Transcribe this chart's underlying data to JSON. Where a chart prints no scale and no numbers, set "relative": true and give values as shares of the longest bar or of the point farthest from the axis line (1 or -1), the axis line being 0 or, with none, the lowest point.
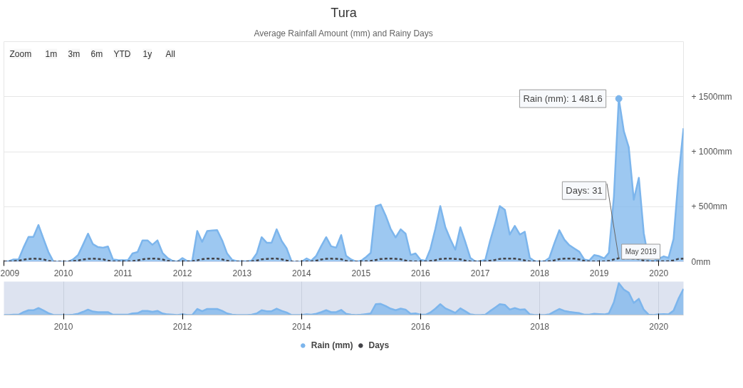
{
  "chart_data": [
    {
      "type": "area",
      "title": "Tura",
      "subtitle": "Average Rainfall Amount (mm) and Rainy Days",
      "x": [
        "2009-01",
        "2009-02",
        "2009-03",
        "2009-04",
        "2009-05",
        "2009-06",
        "2009-07",
        "2009-08",
        "2009-09",
        "2009-10",
        "2009-11",
        "2009-12",
        "2010-01",
        "2010-02",
        "2010-03",
        "2010-04",
        "2010-05",
        "2010-06",
        "2010-07",
        "2010-08",
        "2010-09",
        "2010-10",
        "2010-11",
        "2010-12",
        "2011-01",
        "2011-02",
        "2011-03",
        "2011-04",
        "2011-05",
        "2011-06",
        "2011-07",
        "2011-08",
        "2011-09",
        "2011-10",
        "2011-11",
        "2011-12",
        "2012-01",
        "2012-02",
        "2012-03",
        "2012-04",
        "2012-05",
        "2012-06",
        "2012-07",
        "2012-08",
        "2012-09",
        "2012-10",
        "2012-11",
        "2012-12",
        "2013-01",
        "2013-02",
        "2013-03",
        "2013-04",
        "2013-05",
        "2013-06",
        "2013-07",
        "2013-08",
        "2013-09",
        "2013-10",
        "2013-11",
        "2013-12",
        "2014-01",
        "2014-02",
        "2014-03",
        "2014-04",
        "2014-05",
        "2014-06",
        "2014-07",
        "2014-08",
        "2014-09",
        "2014-10",
        "2014-11",
        "2014-12",
        "2015-01",
        "2015-02",
        "2015-03",
        "2015-04",
        "2015-05",
        "2015-06",
        "2015-07",
        "2015-08",
        "2015-09",
        "2015-10",
        "2015-11",
        "2015-12",
        "2016-01",
        "2016-02",
        "2016-03",
        "2016-04",
        "2016-05",
        "2016-06",
        "2016-07",
        "2016-08",
        "2016-09",
        "2016-10",
        "2016-11",
        "2016-12",
        "2017-01",
        "2017-02",
        "2017-03",
        "2017-04",
        "2017-05",
        "2017-06",
        "2017-07",
        "2017-08",
        "2017-09",
        "2017-10",
        "2017-11",
        "2017-12",
        "2018-01",
        "2018-02",
        "2018-03",
        "2018-04",
        "2018-05",
        "2018-06",
        "2018-07",
        "2018-08",
        "2018-09",
        "2018-10",
        "2018-11",
        "2018-12",
        "2019-01",
        "2019-02",
        "2019-03",
        "2019-04",
        "2019-05",
        "2019-06",
        "2019-07",
        "2019-08",
        "2019-09",
        "2019-10",
        "2019-11",
        "2019-12",
        "2020-01",
        "2020-02",
        "2020-03",
        "2020-04",
        "2020-05",
        "2020-06"
      ],
      "series": [
        {
          "name": "Rain (mm)",
          "type": "area",
          "color": "#7cb5ec",
          "values": [
            0,
            5,
            20,
            20,
            127,
            225,
            225,
            333,
            206,
            87,
            0,
            0,
            0,
            0,
            20,
            60,
            153,
            254,
            159,
            132,
            127,
            138,
            20,
            15,
            13,
            13,
            74,
            87,
            193,
            193,
            153,
            193,
            79,
            34,
            8,
            0,
            32,
            5,
            5,
            278,
            180,
            278,
            283,
            286,
            193,
            74,
            16,
            3,
            3,
            3,
            10,
            74,
            222,
            172,
            172,
            294,
            188,
            122,
            0,
            0,
            0,
            29,
            8,
            53,
            140,
            222,
            140,
            127,
            241,
            53,
            20,
            0,
            8,
            42,
            79,
            503,
            519,
            418,
            299,
            220,
            294,
            254,
            61,
            74,
            16,
            8,
            114,
            299,
            505,
            312,
            206,
            108,
            312,
            180,
            34,
            3,
            5,
            16,
            180,
            339,
            505,
            471,
            246,
            325,
            246,
            272,
            34,
            5,
            0,
            5,
            34,
            167,
            286,
            200,
            150,
            120,
            90,
            20,
            10,
            60,
            50,
            30,
            80,
            590,
            1481.6,
            1185,
            1040,
            563,
            762,
            259,
            10,
            5,
            26,
            48,
            34,
            206,
            762,
            1212
          ]
        },
        {
          "name": "Days",
          "type": "line",
          "line_style": "dashed",
          "color": "#434348",
          "values": [
            1,
            1,
            3,
            8,
            18,
            25,
            27,
            26,
            20,
            7,
            1,
            0,
            0,
            1,
            4,
            10,
            20,
            26,
            27,
            25,
            21,
            9,
            2,
            1,
            1,
            2,
            5,
            11,
            21,
            26,
            28,
            26,
            19,
            8,
            1,
            0,
            2,
            1,
            3,
            12,
            22,
            27,
            28,
            27,
            20,
            8,
            1,
            0,
            0,
            1,
            3,
            10,
            21,
            25,
            27,
            27,
            21,
            10,
            1,
            0,
            0,
            2,
            2,
            9,
            19,
            26,
            27,
            26,
            22,
            7,
            2,
            0,
            1,
            3,
            6,
            15,
            24,
            27,
            28,
            26,
            22,
            10,
            3,
            2,
            1,
            1,
            6,
            13,
            24,
            27,
            28,
            25,
            21,
            9,
            2,
            1,
            1,
            2,
            8,
            15,
            25,
            28,
            27,
            27,
            21,
            11,
            2,
            1,
            0,
            1,
            4,
            12,
            23,
            27,
            28,
            27,
            20,
            7,
            1,
            2,
            2,
            2,
            6,
            20,
            31,
            28,
            29,
            26,
            22,
            10,
            1,
            1,
            2,
            3,
            4,
            12,
            25,
            28
          ]
        }
      ],
      "xlim": [
        "2009-01",
        "2020-06"
      ],
      "xticks": [
        "2009",
        "2010",
        "2011",
        "2012",
        "2013",
        "2014",
        "2015",
        "2016",
        "2017",
        "2018",
        "2019",
        "2020"
      ],
      "ylim": [
        0,
        2000
      ],
      "yticks": [
        {
          "value": 0,
          "label": "0mm"
        },
        {
          "value": 500,
          "label": "+ 500mm"
        },
        {
          "value": 1000,
          "label": "+ 1000mm"
        },
        {
          "value": 1500,
          "label": "+ 1500mm"
        },
        {
          "value": 2000,
          "label": null
        }
      ],
      "grid": "y",
      "legend": "bottom",
      "annotations": [
        "Zoom",
        "1m",
        "3m",
        "6m",
        "YTD",
        "1y",
        "All",
        {
          "text": "Rain (mm): 1 481.6",
          "x": "2019-05",
          "y": 1481.6
        },
        {
          "text": "Days: 31",
          "x": "2019-05",
          "y": 31
        },
        {
          "text": "May 2019",
          "x": "2019-05",
          "y": 0
        }
      ]
    },
    {
      "type": "area",
      "relative": true,
      "color": "#7cb5ec",
      "x": [
        "2009-01",
        "2009-02",
        "2009-03",
        "2009-04",
        "2009-05",
        "2009-06",
        "2009-07",
        "2009-08",
        "2009-09",
        "2009-10",
        "2009-11",
        "2009-12",
        "2010-01",
        "2010-02",
        "2010-03",
        "2010-04",
        "2010-05",
        "2010-06",
        "2010-07",
        "2010-08",
        "2010-09",
        "2010-10",
        "2010-11",
        "2010-12",
        "2011-01",
        "2011-02",
        "2011-03",
        "2011-04",
        "2011-05",
        "2011-06",
        "2011-07",
        "2011-08",
        "2011-09",
        "2011-10",
        "2011-11",
        "2011-12",
        "2012-01",
        "2012-02",
        "2012-03",
        "2012-04",
        "2012-05",
        "2012-06",
        "2012-07",
        "2012-08",
        "2012-09",
        "2012-10",
        "2012-11",
        "2012-12",
        "2013-01",
        "2013-02",
        "2013-03",
        "2013-04",
        "2013-05",
        "2013-06",
        "2013-07",
        "2013-08",
        "2013-09",
        "2013-10",
        "2013-11",
        "2013-12",
        "2014-01",
        "2014-02",
        "2014-03",
        "2014-04",
        "2014-05",
        "2014-06",
        "2014-07",
        "2014-08",
        "2014-09",
        "2014-10",
        "2014-11",
        "2014-12",
        "2015-01",
        "2015-02",
        "2015-03",
        "2015-04",
        "2015-05",
        "2015-06",
        "2015-07",
        "2015-08",
        "2015-09",
        "2015-10",
        "2015-11",
        "2015-12",
        "2016-01",
        "2016-02",
        "2016-03",
        "2016-04",
        "2016-05",
        "2016-06",
        "2016-07",
        "2016-08",
        "2016-09",
        "2016-10",
        "2016-11",
        "2016-12",
        "2017-01",
        "2017-02",
        "2017-03",
        "2017-04",
        "2017-05",
        "2017-06",
        "2017-07",
        "2017-08",
        "2017-09",
        "2017-10",
        "2017-11",
        "2017-12",
        "2018-01",
        "2018-02",
        "2018-03",
        "2018-04",
        "2018-05",
        "2018-06",
        "2018-07",
        "2018-08",
        "2018-09",
        "2018-10",
        "2018-11",
        "2018-12",
        "2019-01",
        "2019-02",
        "2019-03",
        "2019-04",
        "2019-05",
        "2019-06",
        "2019-07",
        "2019-08",
        "2019-09",
        "2019-10",
        "2019-11",
        "2019-12",
        "2020-01",
        "2020-02",
        "2020-03",
        "2020-04",
        "2020-05",
        "2020-06"
      ],
      "values": [
        0,
        0,
        0.01,
        0.01,
        0.09,
        0.15,
        0.15,
        0.22,
        0.14,
        0.06,
        0,
        0,
        0,
        0,
        0.01,
        0.04,
        0.1,
        0.17,
        0.11,
        0.09,
        0.09,
        0.09,
        0.01,
        0.01,
        0.01,
        0.01,
        0.05,
        0.06,
        0.13,
        0.13,
        0.1,
        0.13,
        0.05,
        0.02,
        0.01,
        0,
        0.02,
        0,
        0,
        0.19,
        0.12,
        0.19,
        0.19,
        0.19,
        0.13,
        0.05,
        0.01,
        0,
        0,
        0,
        0.01,
        0.05,
        0.15,
        0.12,
        0.12,
        0.2,
        0.13,
        0.08,
        0,
        0,
        0,
        0.02,
        0.01,
        0.04,
        0.09,
        0.15,
        0.09,
        0.09,
        0.16,
        0.04,
        0.01,
        0,
        0.01,
        0.03,
        0.05,
        0.34,
        0.35,
        0.28,
        0.2,
        0.15,
        0.2,
        0.17,
        0.04,
        0.05,
        0.01,
        0.01,
        0.08,
        0.2,
        0.34,
        0.21,
        0.14,
        0.07,
        0.21,
        0.12,
        0.02,
        0,
        0,
        0.01,
        0.12,
        0.23,
        0.34,
        0.32,
        0.17,
        0.22,
        0.17,
        0.18,
        0.02,
        0,
        0,
        0,
        0.02,
        0.11,
        0.19,
        0.13,
        0.1,
        0.08,
        0.06,
        0.01,
        0.01,
        0.04,
        0.03,
        0.02,
        0.05,
        0.4,
        1,
        0.8,
        0.7,
        0.38,
        0.51,
        0.17,
        0.01,
        0,
        0.02,
        0.03,
        0.02,
        0.14,
        0.51,
        0.82
      ],
      "xlim": [
        "2009-01",
        "2020-06"
      ],
      "xticks": [
        "2010",
        "2012",
        "2014",
        "2016",
        "2018",
        "2020"
      ],
      "grid": "x"
    }
  ]
}
